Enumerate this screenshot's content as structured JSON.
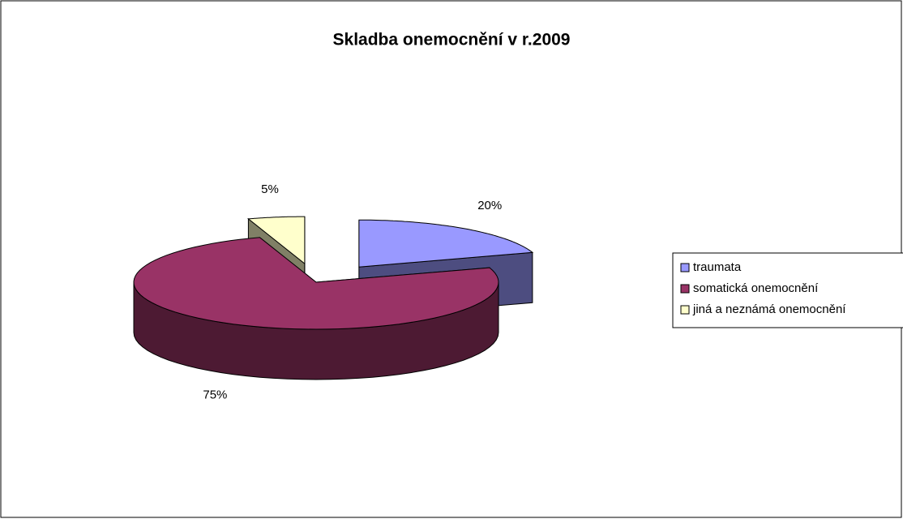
{
  "chart_data": {
    "type": "pie",
    "title": "Skladba onemocnění v r.2009",
    "categories": [
      "traumata",
      "somatická onemocnění",
      "jiná a neznámá onemocnění"
    ],
    "values": [
      20,
      75,
      5
    ],
    "value_labels": [
      "20%",
      "75%",
      "5%"
    ],
    "colors": [
      "#9999ff",
      "#993366",
      "#ffffcc"
    ],
    "legend": "right"
  }
}
